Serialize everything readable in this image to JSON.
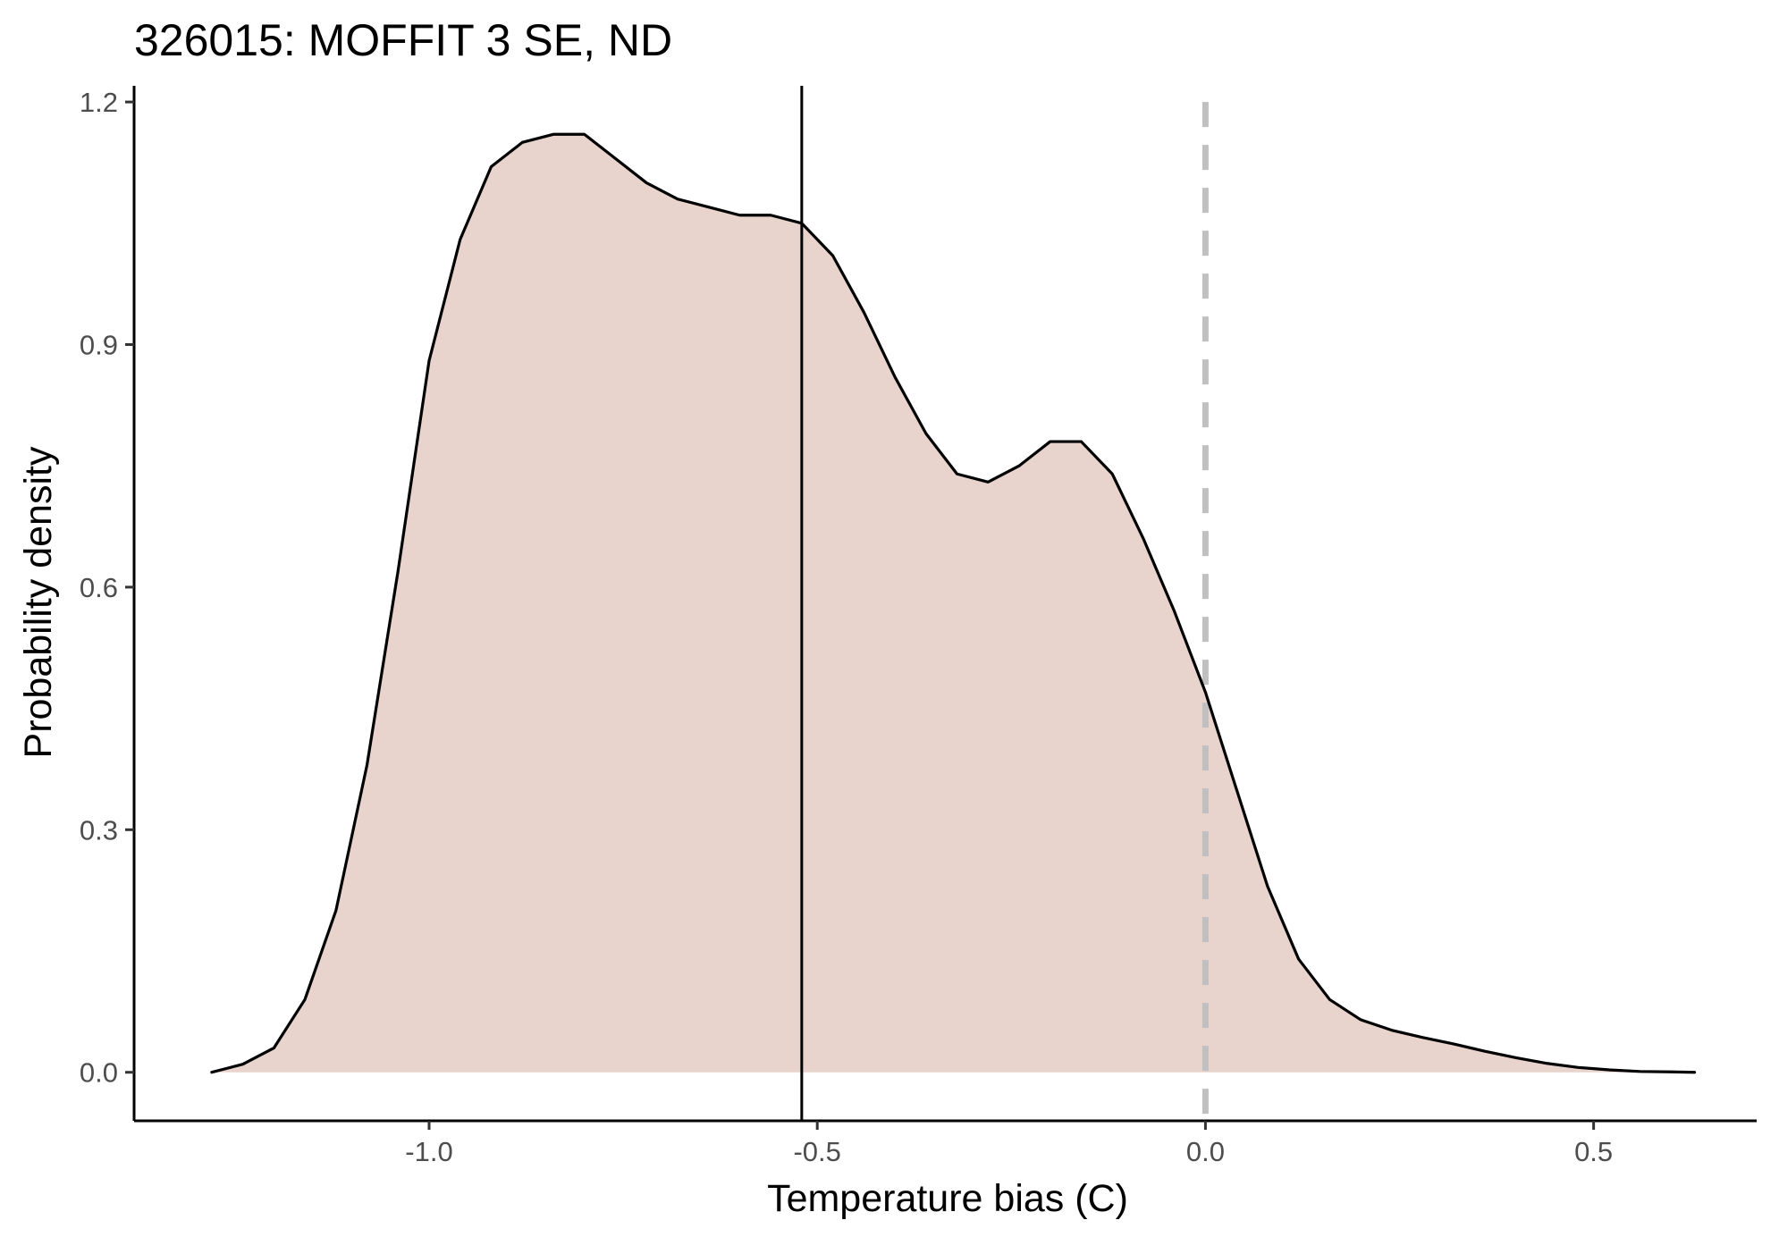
{
  "chart_data": {
    "type": "area",
    "title": "326015: MOFFIT 3 SE, ND",
    "xlabel": "Temperature bias (C)",
    "ylabel": "Probability density",
    "xlim": [
      -1.38,
      0.71
    ],
    "ylim": [
      -0.06,
      1.22
    ],
    "xticks": [
      -1.0,
      -0.5,
      0.0,
      0.5
    ],
    "xtick_labels": [
      "-1.0",
      "-0.5",
      "0.0",
      "0.5"
    ],
    "yticks": [
      0.0,
      0.3,
      0.6,
      0.9,
      1.2
    ],
    "ytick_labels": [
      "0.0",
      "0.3",
      "0.6",
      "0.9",
      "1.2"
    ],
    "grid": false,
    "legend": "none",
    "fill_color": "#e8d4cd",
    "line_color": "#000000",
    "reference_lines": [
      {
        "type": "vline",
        "x": -0.52,
        "style": "solid",
        "color": "#000000"
      },
      {
        "type": "vline",
        "x": 0.0,
        "style": "dashed",
        "color": "#c0c0c0"
      }
    ],
    "series": [
      {
        "x": [
          -1.28,
          -1.24,
          -1.2,
          -1.16,
          -1.12,
          -1.08,
          -1.04,
          -1.0,
          -0.96,
          -0.92,
          -0.88,
          -0.84,
          -0.8,
          -0.76,
          -0.72,
          -0.68,
          -0.64,
          -0.6,
          -0.56,
          -0.52,
          -0.48,
          -0.44,
          -0.4,
          -0.36,
          -0.32,
          -0.28,
          -0.24,
          -0.2,
          -0.16,
          -0.12,
          -0.08,
          -0.04,
          0.0,
          0.04,
          0.08,
          0.12,
          0.16,
          0.2,
          0.24,
          0.28,
          0.32,
          0.36,
          0.4,
          0.44,
          0.48,
          0.52,
          0.56,
          0.6,
          0.63
        ],
        "y": [
          0.0,
          0.01,
          0.03,
          0.09,
          0.2,
          0.38,
          0.62,
          0.88,
          1.03,
          1.12,
          1.15,
          1.16,
          1.16,
          1.13,
          1.1,
          1.08,
          1.07,
          1.06,
          1.06,
          1.05,
          1.01,
          0.94,
          0.86,
          0.79,
          0.74,
          0.73,
          0.75,
          0.78,
          0.78,
          0.74,
          0.66,
          0.57,
          0.47,
          0.35,
          0.23,
          0.14,
          0.09,
          0.065,
          0.052,
          0.043,
          0.035,
          0.026,
          0.018,
          0.011,
          0.006,
          0.003,
          0.001,
          0.0005,
          0.0
        ]
      }
    ]
  }
}
